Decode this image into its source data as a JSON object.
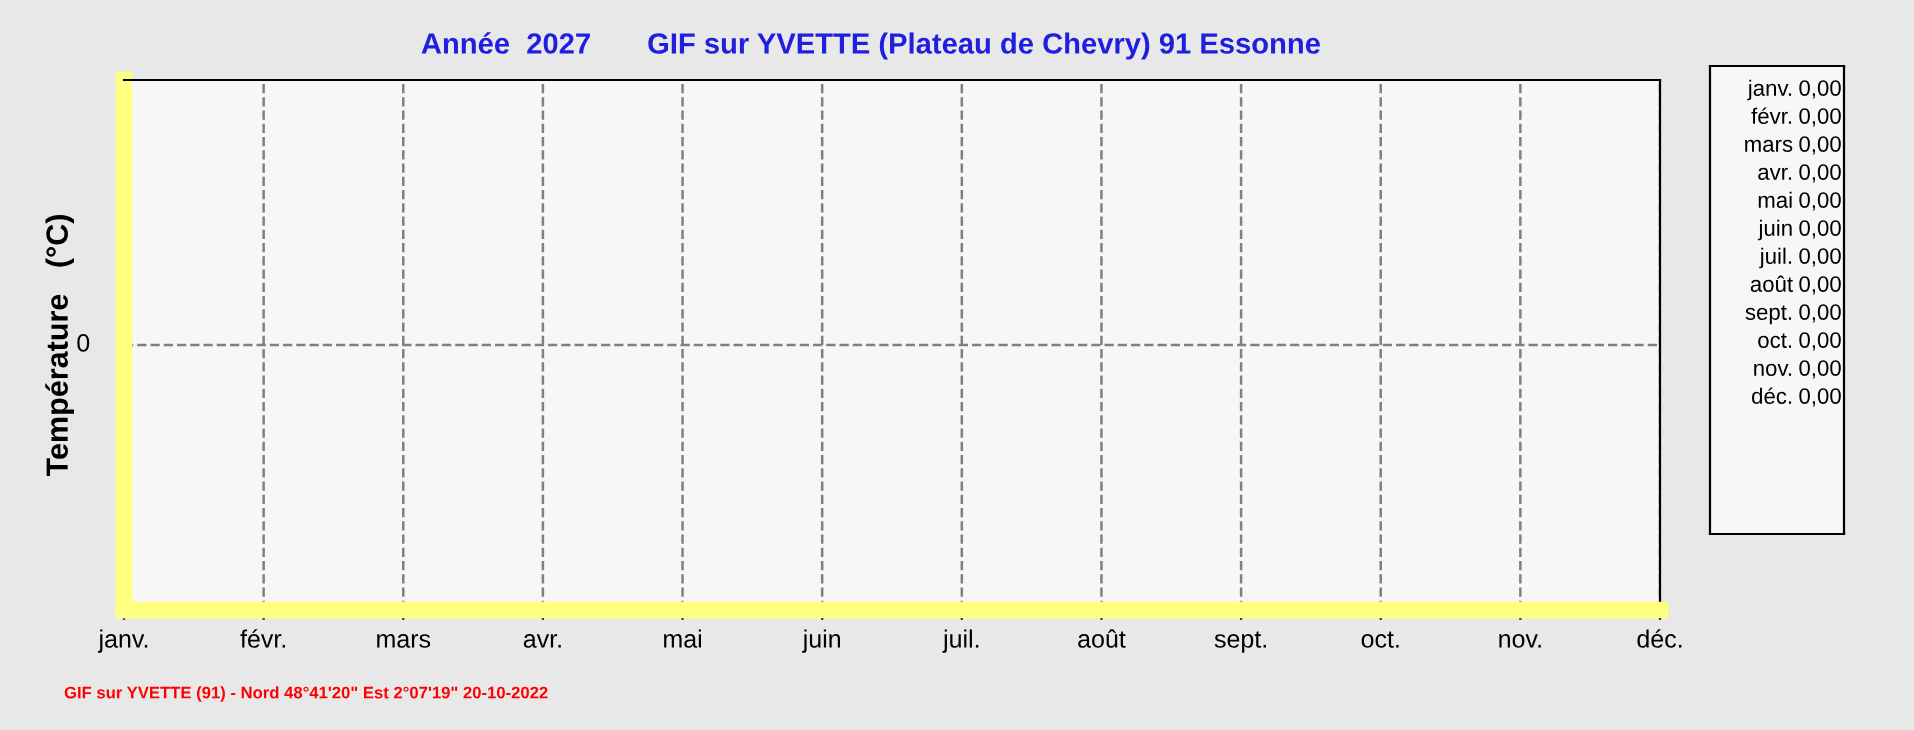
{
  "chart_data": {
    "type": "other",
    "title": "Année  2027",
    "subtitle": "GIF sur YVETTE (Plateau de Chevry) 91 Essonne",
    "ylabel": "Température   (°C)",
    "categories": [
      "janv.",
      "févr.",
      "mars",
      "avr.",
      "mai",
      "juin",
      "juil.",
      "août",
      "sept.",
      "oct.",
      "nov.",
      "déc."
    ],
    "values": [
      0,
      0,
      0,
      0,
      0,
      0,
      0,
      0,
      0,
      0,
      0,
      0
    ],
    "value_labels": [
      "0,00",
      "0,00",
      "0,00",
      "0,00",
      "0,00",
      "0,00",
      "0,00",
      "0,00",
      "0,00",
      "0,00",
      "0,00",
      "0,00"
    ],
    "annotations": [
      "0",
      "GIF sur YVETTE (91) - Nord 48°41'20\" Est 2°07'19\" 20-10-2022"
    ]
  }
}
